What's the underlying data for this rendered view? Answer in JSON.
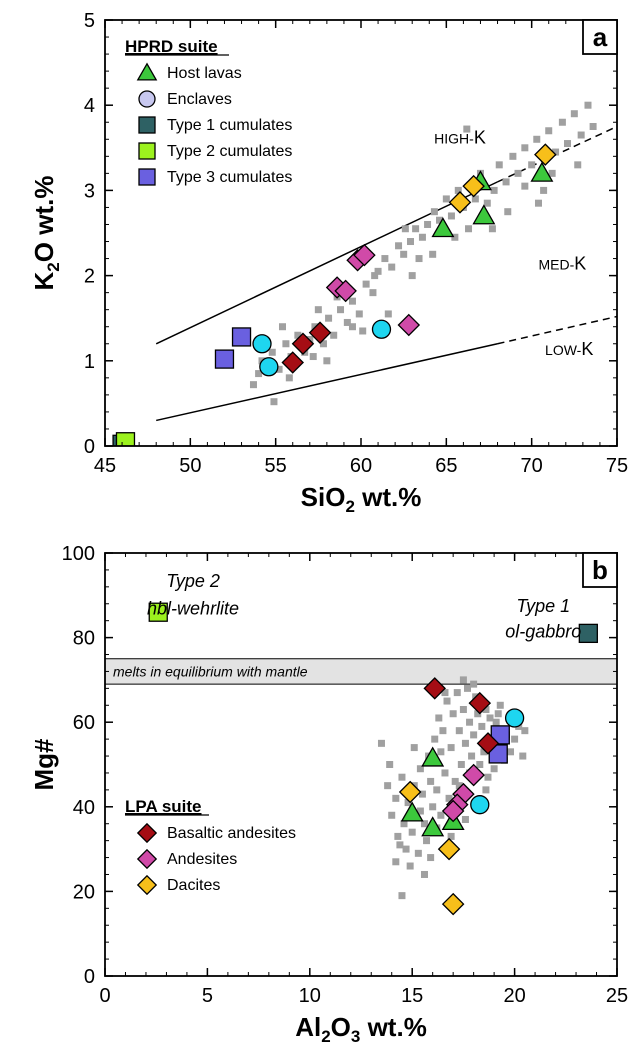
{
  "colors": {
    "host_lavas": "#3cc83c",
    "enclaves": "#1ed6f0",
    "type1": "#2e6164",
    "type2": "#9cf21e",
    "type3": "#6a60e0",
    "basaltic_andesites": "#a50d14",
    "andesites": "#d04aa8",
    "dacites": "#f7bf1a",
    "background": "#a0a0a0",
    "band": "#e3e3e3"
  },
  "chart_data": [
    {
      "type": "scatter",
      "panel": "a",
      "xlabel": "SiO2 wt.%",
      "ylabel": "K2O wt.%",
      "xlim": [
        45,
        75
      ],
      "ylim": [
        0,
        5
      ],
      "x_ticks": [
        45,
        50,
        55,
        60,
        65,
        70,
        75
      ],
      "y_ticks": [
        0,
        1,
        2,
        3,
        4,
        5
      ],
      "grid": false,
      "legend_title": "HPRD suite",
      "legend_position": "top-left",
      "legend": [
        {
          "label": "Host lavas",
          "marker": "triangle",
          "color_key": "host_lavas"
        },
        {
          "label": "Enclaves",
          "marker": "circle",
          "color_key": "enclaves",
          "legend_color": "#c8c8f0"
        },
        {
          "label": "Type 1 cumulates",
          "marker": "square",
          "color_key": "type1"
        },
        {
          "label": "Type 2 cumulates",
          "marker": "square",
          "color_key": "type2"
        },
        {
          "label": "Type 3 cumulates",
          "marker": "square",
          "color_key": "type3"
        }
      ],
      "field_labels": [
        {
          "text": "HIGH-K",
          "x": 65.8,
          "y": 3.55
        },
        {
          "text": "MED-K",
          "x": 71.8,
          "y": 2.07
        },
        {
          "text": "LOW-K",
          "x": 72.2,
          "y": 1.07
        }
      ],
      "boundary_lines": [
        {
          "name": "high-med",
          "solid": [
            [
              48,
              1.2
            ],
            [
              68,
              3.1
            ]
          ],
          "dashed": [
            [
              68,
              3.1
            ],
            [
              75,
              3.75
            ]
          ]
        },
        {
          "name": "med-low",
          "solid": [
            [
              48,
              0.3
            ],
            [
              68,
              1.2
            ]
          ],
          "dashed": [
            [
              68,
              1.2
            ],
            [
              75,
              1.52
            ]
          ]
        }
      ],
      "series": [
        {
          "name": "Host lavas",
          "marker": "triangle",
          "color_key": "host_lavas",
          "points": [
            [
              64.8,
              2.55
            ],
            [
              67.0,
              3.1
            ],
            [
              67.2,
              2.7
            ],
            [
              70.6,
              3.2
            ]
          ]
        },
        {
          "name": "Enclaves",
          "marker": "circle",
          "color_key": "enclaves",
          "points": [
            [
              54.2,
              1.2
            ],
            [
              54.6,
              0.93
            ],
            [
              61.2,
              1.37
            ]
          ]
        },
        {
          "name": "Type 1 cumulates",
          "marker": "square",
          "color_key": "type1",
          "points": [
            [
              46.0,
              0.02
            ]
          ]
        },
        {
          "name": "Type 2 cumulates",
          "marker": "square",
          "color_key": "type2",
          "points": [
            [
              46.2,
              0.05
            ]
          ]
        },
        {
          "name": "Type 3 cumulates",
          "marker": "square",
          "color_key": "type3",
          "points": [
            [
              52.0,
              1.02
            ],
            [
              53.0,
              1.28
            ]
          ]
        },
        {
          "name": "Basaltic andesites",
          "marker": "diamond",
          "color_key": "basaltic_andesites",
          "points": [
            [
              56.0,
              0.98
            ],
            [
              56.6,
              1.2
            ],
            [
              57.6,
              1.33
            ]
          ]
        },
        {
          "name": "Andesites",
          "marker": "diamond",
          "color_key": "andesites",
          "points": [
            [
              58.6,
              1.86
            ],
            [
              59.1,
              1.82
            ],
            [
              59.8,
              2.18
            ],
            [
              60.2,
              2.24
            ],
            [
              62.8,
              1.42
            ]
          ]
        },
        {
          "name": "Dacites",
          "marker": "diamond",
          "color_key": "dacites",
          "points": [
            [
              65.8,
              2.86
            ],
            [
              66.6,
              3.05
            ],
            [
              70.8,
              3.42
            ]
          ]
        }
      ],
      "background": [
        [
          54.2,
          1.0
        ],
        [
          54.8,
          1.1
        ],
        [
          55.2,
          0.9
        ],
        [
          55.6,
          1.2
        ],
        [
          55.9,
          1.05
        ],
        [
          56.3,
          1.3
        ],
        [
          56.7,
          1.1
        ],
        [
          57.0,
          1.25
        ],
        [
          57.3,
          1.4
        ],
        [
          57.8,
          1.2
        ],
        [
          58.1,
          1.5
        ],
        [
          58.4,
          1.3
        ],
        [
          58.8,
          1.6
        ],
        [
          59.2,
          1.45
        ],
        [
          59.5,
          1.7
        ],
        [
          59.9,
          1.55
        ],
        [
          60.3,
          1.9
        ],
        [
          60.7,
          1.8
        ],
        [
          61.0,
          2.05
        ],
        [
          61.4,
          2.2
        ],
        [
          61.8,
          2.1
        ],
        [
          62.2,
          2.35
        ],
        [
          62.5,
          2.25
        ],
        [
          62.9,
          2.4
        ],
        [
          63.2,
          2.55
        ],
        [
          63.6,
          2.45
        ],
        [
          63.9,
          2.6
        ],
        [
          64.3,
          2.75
        ],
        [
          64.6,
          2.65
        ],
        [
          65.0,
          2.9
        ],
        [
          65.3,
          2.7
        ],
        [
          65.7,
          3.0
        ],
        [
          66.0,
          2.8
        ],
        [
          66.3,
          2.55
        ],
        [
          66.7,
          2.9
        ],
        [
          67.0,
          3.2
        ],
        [
          67.4,
          2.85
        ],
        [
          67.8,
          3.0
        ],
        [
          68.1,
          3.3
        ],
        [
          68.5,
          3.1
        ],
        [
          68.9,
          3.4
        ],
        [
          69.2,
          3.2
        ],
        [
          69.6,
          3.5
        ],
        [
          70.0,
          3.3
        ],
        [
          70.3,
          3.6
        ],
        [
          70.7,
          3.0
        ],
        [
          71.0,
          3.7
        ],
        [
          71.4,
          3.45
        ],
        [
          71.8,
          3.8
        ],
        [
          72.1,
          3.55
        ],
        [
          72.5,
          3.9
        ],
        [
          72.9,
          3.65
        ],
        [
          73.3,
          4.0
        ],
        [
          73.6,
          3.75
        ],
        [
          66.2,
          3.72
        ],
        [
          68.6,
          2.75
        ],
        [
          69.6,
          3.05
        ],
        [
          63.4,
          2.2
        ],
        [
          60.8,
          2.0
        ],
        [
          58.6,
          1.75
        ],
        [
          57.2,
          1.05
        ],
        [
          55.8,
          0.8
        ],
        [
          54.0,
          0.85
        ],
        [
          53.7,
          0.72
        ],
        [
          54.9,
          0.52
        ],
        [
          59.5,
          1.4
        ],
        [
          61.6,
          1.55
        ],
        [
          62.6,
          2.55
        ],
        [
          64.2,
          2.25
        ],
        [
          65.5,
          2.45
        ],
        [
          67.7,
          2.55
        ],
        [
          71.2,
          3.2
        ],
        [
          72.7,
          3.3
        ],
        [
          70.4,
          2.85
        ],
        [
          55.4,
          1.4
        ],
        [
          57.5,
          1.6
        ],
        [
          60.1,
          1.35
        ],
        [
          58.0,
          1.0
        ],
        [
          63.0,
          2.0
        ]
      ]
    },
    {
      "type": "scatter",
      "panel": "b",
      "xlabel": "Al2O3 wt.%",
      "ylabel": "Mg#",
      "xlim": [
        0,
        25
      ],
      "ylim": [
        0,
        100
      ],
      "x_ticks": [
        0,
        5,
        10,
        15,
        20,
        25
      ],
      "y_ticks": [
        0,
        20,
        40,
        60,
        80,
        100
      ],
      "grid": false,
      "legend_title": "LPA suite",
      "legend_position": "bottom-left",
      "legend": [
        {
          "label": "Basaltic andesites",
          "marker": "diamond",
          "color_key": "basaltic_andesites"
        },
        {
          "label": "Andesites",
          "marker": "diamond",
          "color_key": "andesites"
        },
        {
          "label": "Dacites",
          "marker": "diamond",
          "color_key": "dacites"
        }
      ],
      "band": {
        "label": "melts in equilibrium with mantle",
        "y_range": [
          69,
          75
        ]
      },
      "annotations": [
        {
          "line1": "Type 2",
          "line2": "hbl-wehrlite",
          "x": 4.3,
          "y1": 92,
          "y2": 85.5
        },
        {
          "line1": "Type 1",
          "line2": "ol-gabbro",
          "x": 21.4,
          "y1": 86,
          "y2": 80
        }
      ],
      "series": [
        {
          "name": "Host lavas",
          "marker": "triangle",
          "color_key": "host_lavas",
          "points": [
            [
              16.0,
              51.5
            ],
            [
              15.0,
              38.5
            ],
            [
              16.0,
              35.0
            ],
            [
              17.0,
              36.5
            ]
          ]
        },
        {
          "name": "Enclaves",
          "marker": "circle",
          "color_key": "enclaves",
          "points": [
            [
              20.0,
              61.0
            ],
            [
              19.2,
              55.5
            ],
            [
              18.3,
              40.5
            ]
          ]
        },
        {
          "name": "Type 1 cumulates",
          "marker": "square",
          "color_key": "type1",
          "points": [
            [
              23.6,
              81.0
            ]
          ]
        },
        {
          "name": "Type 2 cumulates",
          "marker": "square",
          "color_key": "type2",
          "points": [
            [
              2.6,
              86.0
            ]
          ]
        },
        {
          "name": "Type 3 cumulates",
          "marker": "square",
          "color_key": "type3",
          "points": [
            [
              19.3,
              57.0
            ],
            [
              19.2,
              52.5
            ]
          ]
        },
        {
          "name": "Basaltic andesites",
          "marker": "diamond",
          "color_key": "basaltic_andesites",
          "points": [
            [
              16.1,
              68.0
            ],
            [
              18.3,
              64.5
            ],
            [
              18.7,
              55.0
            ]
          ]
        },
        {
          "name": "Andesites",
          "marker": "diamond",
          "color_key": "andesites",
          "points": [
            [
              18.0,
              47.5
            ],
            [
              17.5,
              43.0
            ],
            [
              17.2,
              40.5
            ],
            [
              17.0,
              39.0
            ]
          ]
        },
        {
          "name": "Dacites",
          "marker": "diamond",
          "color_key": "dacites",
          "points": [
            [
              14.9,
              43.5
            ],
            [
              16.8,
              30.0
            ],
            [
              17.0,
              17.0
            ]
          ]
        }
      ],
      "background": [
        [
          13.5,
          55
        ],
        [
          13.8,
          45
        ],
        [
          14.0,
          38
        ],
        [
          14.2,
          42
        ],
        [
          14.3,
          33
        ],
        [
          14.5,
          47
        ],
        [
          14.6,
          36
        ],
        [
          14.7,
          30
        ],
        [
          14.8,
          41
        ],
        [
          14.9,
          26
        ],
        [
          15.0,
          34
        ],
        [
          15.1,
          45
        ],
        [
          15.2,
          38
        ],
        [
          15.3,
          29
        ],
        [
          15.4,
          49
        ],
        [
          15.5,
          43
        ],
        [
          15.6,
          36
        ],
        [
          15.7,
          32
        ],
        [
          15.8,
          52
        ],
        [
          15.9,
          46
        ],
        [
          16.0,
          40
        ],
        [
          16.1,
          56
        ],
        [
          16.2,
          44
        ],
        [
          16.3,
          61
        ],
        [
          16.4,
          38
        ],
        [
          16.5,
          58
        ],
        [
          16.6,
          48
        ],
        [
          16.7,
          65
        ],
        [
          16.8,
          42
        ],
        [
          16.9,
          54
        ],
        [
          17.0,
          62
        ],
        [
          17.1,
          46
        ],
        [
          17.2,
          67
        ],
        [
          17.3,
          58
        ],
        [
          17.4,
          50
        ],
        [
          17.5,
          63
        ],
        [
          17.6,
          55
        ],
        [
          17.7,
          68
        ],
        [
          17.8,
          60
        ],
        [
          17.9,
          52
        ],
        [
          18.0,
          57
        ],
        [
          18.1,
          66
        ],
        [
          18.2,
          62
        ],
        [
          18.3,
          50
        ],
        [
          18.4,
          59
        ],
        [
          18.5,
          53
        ],
        [
          18.6,
          63
        ],
        [
          18.7,
          47
        ],
        [
          18.8,
          61
        ],
        [
          18.9,
          56
        ],
        [
          19.0,
          49
        ],
        [
          19.1,
          60
        ],
        [
          19.2,
          62
        ],
        [
          19.4,
          58
        ],
        [
          19.5,
          51
        ],
        [
          19.6,
          57
        ],
        [
          19.8,
          53
        ],
        [
          20.0,
          56
        ],
        [
          20.2,
          59
        ],
        [
          20.4,
          52
        ],
        [
          20.5,
          58
        ],
        [
          14.5,
          19
        ],
        [
          15.6,
          24
        ],
        [
          14.2,
          27
        ],
        [
          17.5,
          70
        ],
        [
          16.6,
          67
        ],
        [
          18.0,
          69
        ],
        [
          13.9,
          50
        ],
        [
          15.1,
          54
        ],
        [
          17.3,
          45
        ],
        [
          16.9,
          33
        ],
        [
          15.9,
          28
        ],
        [
          14.4,
          31
        ],
        [
          16.4,
          53
        ],
        [
          17.8,
          48
        ],
        [
          19.3,
          64
        ],
        [
          18.6,
          44
        ],
        [
          15.4,
          39
        ],
        [
          16.2,
          35
        ],
        [
          17.6,
          37
        ]
      ]
    }
  ],
  "text": {
    "panel_a_label": "a",
    "panel_b_label": "b",
    "legend_a_title": "HPRD suite",
    "legend_b_title": "LPA suite",
    "band_label": "melts in equilibrium with mantle"
  }
}
